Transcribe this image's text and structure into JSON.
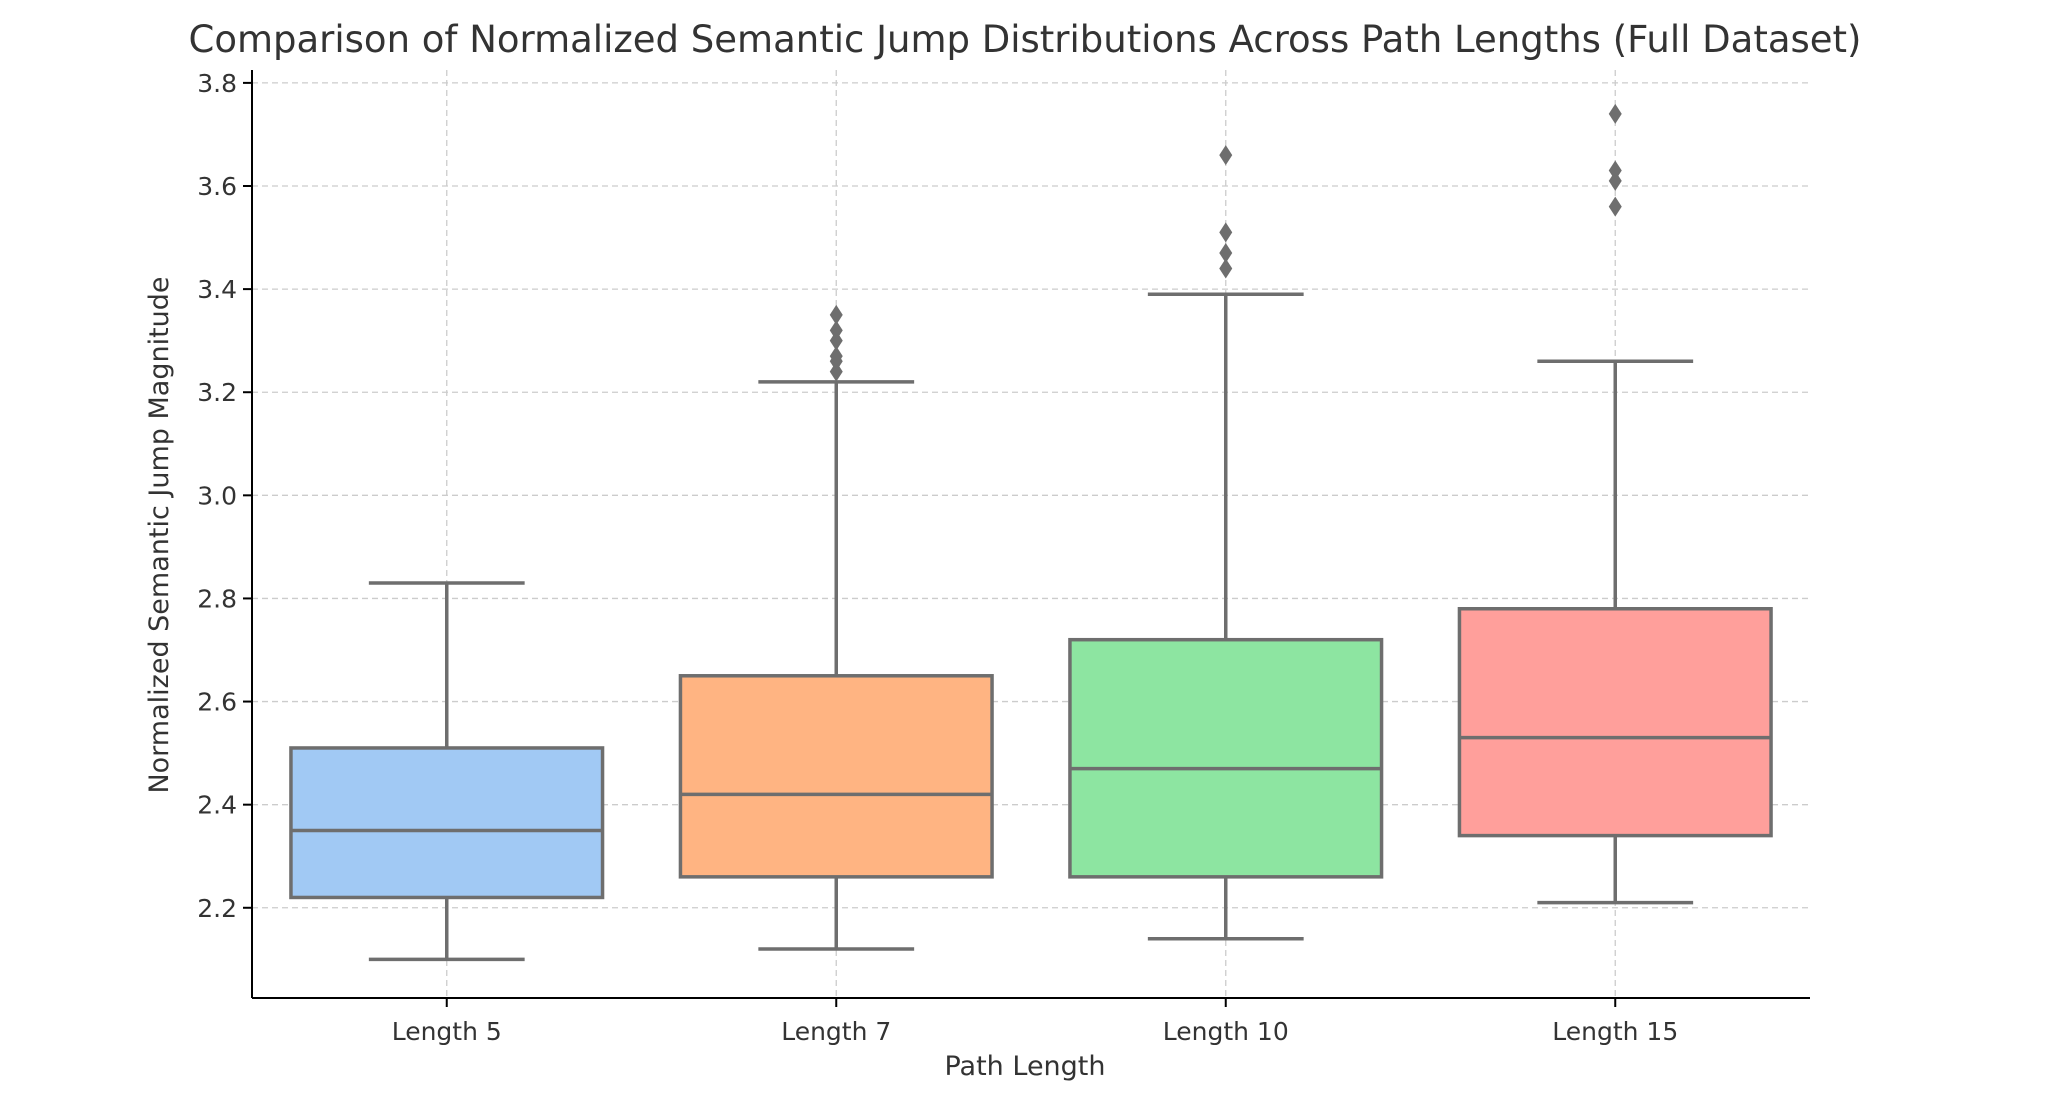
{
  "chart_data": {
    "type": "box",
    "title": "Comparison of Normalized Semantic Jump Distributions Across Path Lengths (Full Dataset)",
    "xlabel": "Path Length",
    "ylabel": "Normalized Semantic Jump Magnitude",
    "ylim": [
      2.025,
      3.825
    ],
    "yticks": [
      2.2,
      2.4,
      2.6,
      2.8,
      3.0,
      3.2,
      3.4,
      3.6,
      3.8
    ],
    "ytick_labels": [
      "2.2",
      "2.4",
      "2.6",
      "2.8",
      "3.0",
      "3.2",
      "3.4",
      "3.6",
      "3.8"
    ],
    "grid": true,
    "categories": [
      "Length 5",
      "Length 7",
      "Length 10",
      "Length 15"
    ],
    "boxes": [
      {
        "category": "Length 5",
        "whisker_low": 2.1,
        "q1": 2.22,
        "median": 2.35,
        "q3": 2.51,
        "whisker_high": 2.83,
        "outliers": [],
        "color": "#a1c9f4"
      },
      {
        "category": "Length 7",
        "whisker_low": 2.12,
        "q1": 2.26,
        "median": 2.42,
        "q3": 2.65,
        "whisker_high": 3.22,
        "outliers": [
          3.24,
          3.26,
          3.27,
          3.3,
          3.32,
          3.35
        ],
        "color": "#ffb482"
      },
      {
        "category": "Length 10",
        "whisker_low": 2.14,
        "q1": 2.26,
        "median": 2.47,
        "q3": 2.72,
        "whisker_high": 3.39,
        "outliers": [
          3.44,
          3.47,
          3.51,
          3.66
        ],
        "color": "#8de5a1"
      },
      {
        "category": "Length 15",
        "whisker_low": 2.21,
        "q1": 2.34,
        "median": 2.53,
        "q3": 2.78,
        "whisker_high": 3.26,
        "outliers": [
          3.56,
          3.61,
          3.63,
          3.74
        ],
        "color": "#ff9f9b"
      }
    ]
  }
}
